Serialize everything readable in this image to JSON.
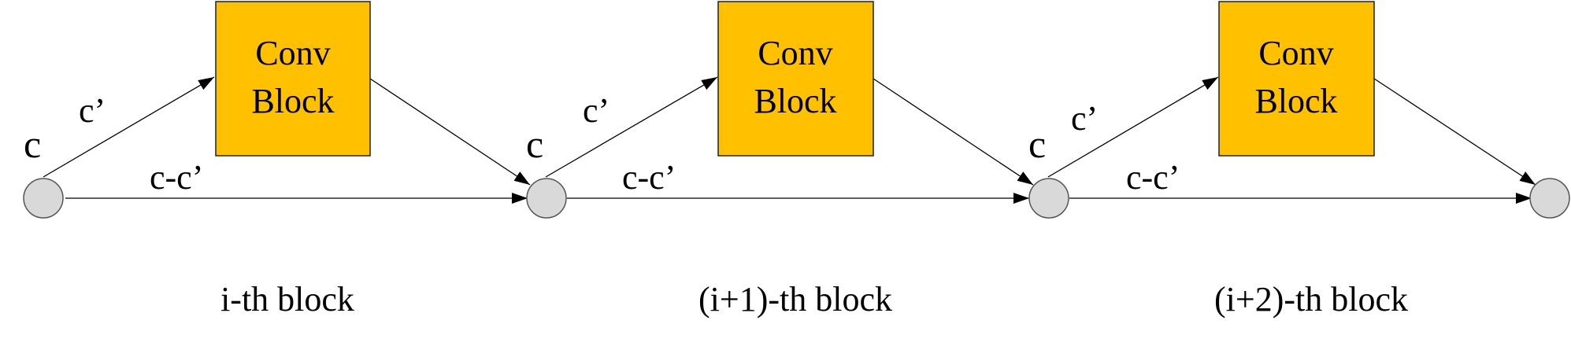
{
  "blocks": [
    {
      "box_line1": "Conv",
      "box_line2": "Block",
      "input_label": "c",
      "branch_label": "c’",
      "skip_label": "c-c’",
      "caption": "i-th block"
    },
    {
      "box_line1": "Conv",
      "box_line2": "Block",
      "input_label": "c",
      "branch_label": "c’",
      "skip_label": "c-c’",
      "caption": "(i+1)-th block"
    },
    {
      "box_line1": "Conv",
      "box_line2": "Block",
      "input_label": "c",
      "branch_label": "c’",
      "skip_label": "c-c’",
      "caption": "(i+2)-th block"
    }
  ],
  "colors": {
    "box_fill": "#FFC000",
    "node_fill": "#D9D9D9"
  }
}
